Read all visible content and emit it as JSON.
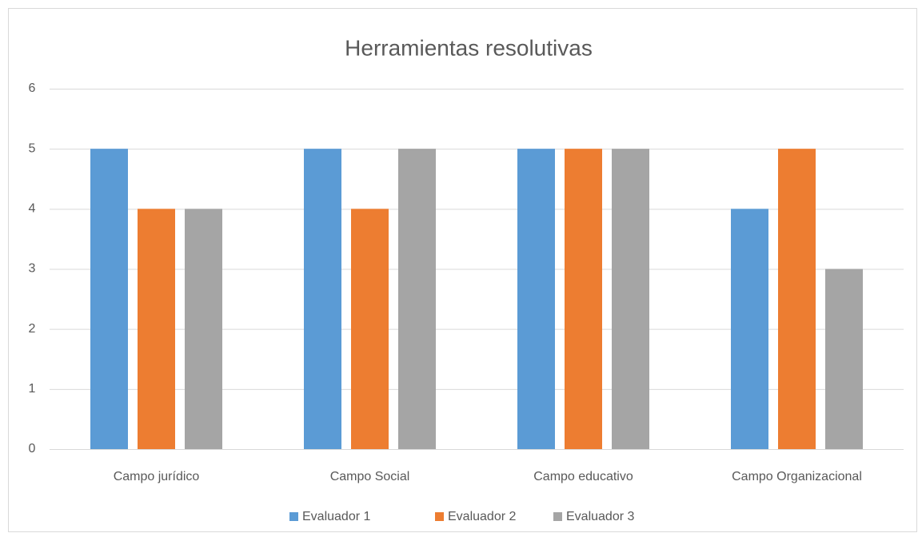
{
  "chart_data": {
    "type": "bar",
    "title": "Herramientas resolutivas",
    "categories": [
      "Campo jurídico",
      "Campo Social",
      "Campo educativo",
      "Campo Organizacional"
    ],
    "series": [
      {
        "name": "Evaluador 1",
        "color": "#5b9bd5",
        "values": [
          5,
          5,
          5,
          4
        ]
      },
      {
        "name": "Evaluador 2",
        "color": "#ed7d31",
        "values": [
          4,
          4,
          5,
          5
        ]
      },
      {
        "name": "Evaluador 3",
        "color": "#a5a5a5",
        "values": [
          4,
          5,
          5,
          3
        ]
      }
    ],
    "ylim": [
      0,
      6
    ],
    "yticks": [
      0,
      1,
      2,
      3,
      4,
      5,
      6
    ],
    "grid": true,
    "legend": "bottom"
  }
}
